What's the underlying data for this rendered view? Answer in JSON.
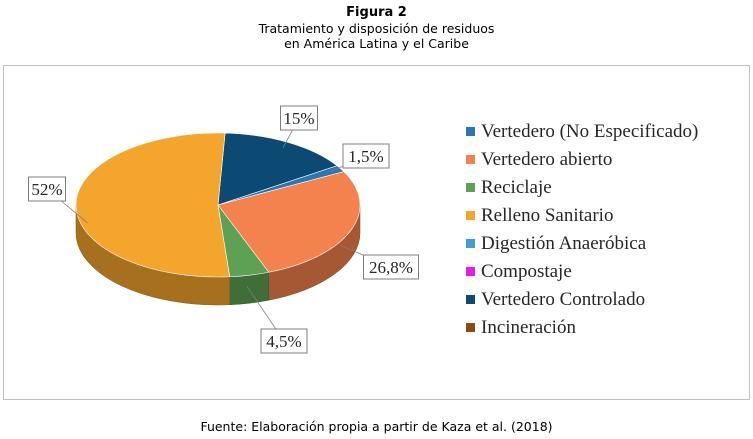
{
  "figure_label": "Figura 2",
  "title_line1": "Tratamiento y disposición de residuos",
  "title_line2": "en América Latina y el Caribe",
  "source": "Fuente: Elaboración propia a partir de Kaza et al. (2018)",
  "chart_data": {
    "type": "pie",
    "style": "3d",
    "legend_position": "right",
    "series": [
      {
        "name": "Vertedero (No Especificado)",
        "value": 1.5,
        "label": "1,5%",
        "color": "#2E75B6"
      },
      {
        "name": "Vertedero abierto",
        "value": 26.8,
        "label": "26,8%",
        "color": "#F4824E"
      },
      {
        "name": "Reciclaje",
        "value": 4.5,
        "label": "4,5%",
        "color": "#5FA154"
      },
      {
        "name": "Relleno Sanitario",
        "value": 52,
        "label": "52%",
        "color": "#F4A52E"
      },
      {
        "name": "Digestión Anaeróbica",
        "value": 0,
        "label": "",
        "color": "#3D9FD3"
      },
      {
        "name": "Compostaje",
        "value": 0,
        "label": "",
        "color": "#E21FE8"
      },
      {
        "name": "Vertedero Controlado",
        "value": 15,
        "label": "15%",
        "color": "#0C4A73"
      },
      {
        "name": "Incineración",
        "value": 0,
        "label": "",
        "color": "#8B4A16"
      }
    ]
  }
}
